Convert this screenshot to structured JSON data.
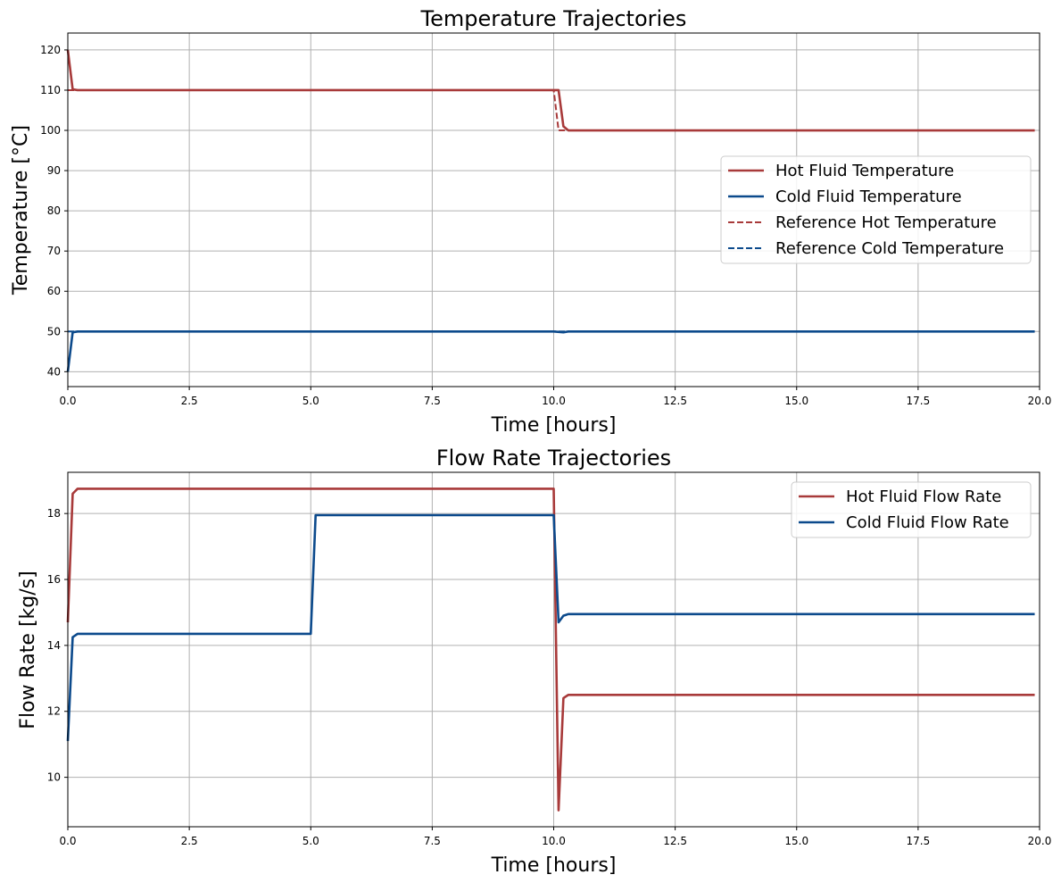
{
  "chart_data": [
    {
      "type": "line",
      "title": "Temperature Trajectories",
      "xlabel": "Time [hours]",
      "ylabel": "Temperature [°C]",
      "xlim": [
        0,
        20
      ],
      "ylim": [
        36.3,
        124.2
      ],
      "xticks": [
        0.0,
        2.5,
        5.0,
        7.5,
        10.0,
        12.5,
        15.0,
        17.5,
        20.0
      ],
      "xtick_labels": [
        "0.0",
        "2.5",
        "5.0",
        "7.5",
        "10.0",
        "12.5",
        "15.0",
        "17.5",
        "20.0"
      ],
      "yticks": [
        40,
        50,
        60,
        70,
        80,
        90,
        100,
        110,
        120
      ],
      "ytick_labels": [
        "40",
        "50",
        "60",
        "70",
        "80",
        "90",
        "100",
        "110",
        "120"
      ],
      "grid": true,
      "legend_position": "center-right",
      "series": [
        {
          "name": "Hot Fluid Temperature",
          "color": "#a83a3a",
          "style": "solid",
          "x": [
            0,
            0.1,
            0.2,
            10.0,
            10.1,
            10.2,
            10.3,
            19.9
          ],
          "y": [
            120,
            110.2,
            110,
            110,
            110,
            101,
            100,
            100
          ]
        },
        {
          "name": "Cold Fluid Temperature",
          "color": "#0c4a8c",
          "style": "solid",
          "x": [
            0,
            0.1,
            0.2,
            10.0,
            10.2,
            10.3,
            19.9
          ],
          "y": [
            40,
            49.8,
            50,
            50,
            49.8,
            50,
            50
          ]
        },
        {
          "name": "Reference Hot Temperature",
          "color": "#a83a3a",
          "style": "dashed",
          "x": [
            0,
            0.1,
            10.0,
            10.1,
            19.9
          ],
          "y": [
            110,
            110,
            110,
            100,
            100
          ]
        },
        {
          "name": "Reference Cold Temperature",
          "color": "#0c4a8c",
          "style": "dashed",
          "x": [
            0,
            19.9
          ],
          "y": [
            50,
            50
          ]
        }
      ]
    },
    {
      "type": "line",
      "title": "Flow Rate Trajectories",
      "xlabel": "Time [hours]",
      "ylabel": "Flow Rate [kg/s]",
      "xlim": [
        0,
        20
      ],
      "ylim": [
        8.5,
        19.25
      ],
      "xticks": [
        0.0,
        2.5,
        5.0,
        7.5,
        10.0,
        12.5,
        15.0,
        17.5,
        20.0
      ],
      "xtick_labels": [
        "0.0",
        "2.5",
        "5.0",
        "7.5",
        "10.0",
        "12.5",
        "15.0",
        "17.5",
        "20.0"
      ],
      "yticks": [
        10,
        12,
        14,
        16,
        18
      ],
      "ytick_labels": [
        "10",
        "12",
        "14",
        "16",
        "18"
      ],
      "grid": true,
      "legend_position": "top-right",
      "series": [
        {
          "name": "Hot Fluid Flow Rate",
          "color": "#a83a3a",
          "style": "solid",
          "x": [
            0,
            0.1,
            0.2,
            10.0,
            10.1,
            10.2,
            10.3,
            19.9
          ],
          "y": [
            14.7,
            18.6,
            18.75,
            18.75,
            9.0,
            12.4,
            12.5,
            12.5
          ]
        },
        {
          "name": "Cold Fluid Flow Rate",
          "color": "#0c4a8c",
          "style": "solid",
          "x": [
            0,
            0.1,
            0.2,
            5.0,
            5.1,
            10.0,
            10.1,
            10.2,
            10.3,
            19.9
          ],
          "y": [
            11.1,
            14.25,
            14.35,
            14.35,
            17.95,
            17.95,
            14.7,
            14.9,
            14.95,
            14.95
          ]
        }
      ]
    }
  ]
}
